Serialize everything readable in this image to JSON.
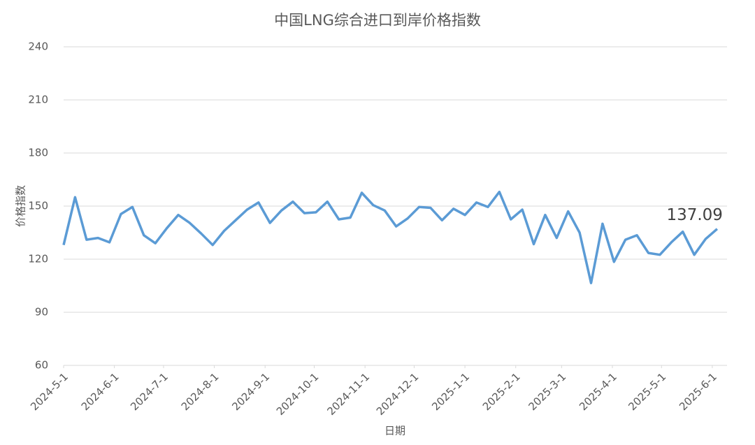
{
  "chart_data": {
    "type": "line",
    "title": "中国LNG综合进口到岸价格指数",
    "x_label": "日期",
    "y_label": "价格指数",
    "x": [
      "2024-5-1",
      "2024-5-8",
      "2024-5-15",
      "2024-5-22",
      "2024-5-29",
      "2024-6-5",
      "2024-6-12",
      "2024-6-19",
      "2024-6-26",
      "2024-7-3",
      "2024-7-10",
      "2024-7-17",
      "2024-7-24",
      "2024-7-31",
      "2024-8-7",
      "2024-8-14",
      "2024-8-21",
      "2024-8-28",
      "2024-9-4",
      "2024-9-11",
      "2024-9-18",
      "2024-9-25",
      "2024-10-2",
      "2024-10-9",
      "2024-10-16",
      "2024-10-23",
      "2024-10-30",
      "2024-11-6",
      "2024-11-13",
      "2024-11-20",
      "2024-11-27",
      "2024-12-4",
      "2024-12-11",
      "2024-12-18",
      "2024-12-25",
      "2025-1-1",
      "2025-1-8",
      "2025-1-15",
      "2025-1-22",
      "2025-1-29",
      "2025-2-5",
      "2025-2-12",
      "2025-2-19",
      "2025-2-26",
      "2025-3-5",
      "2025-3-12",
      "2025-3-19",
      "2025-3-26",
      "2025-4-2",
      "2025-4-9",
      "2025-4-16",
      "2025-4-23",
      "2025-4-30",
      "2025-5-7",
      "2025-5-14",
      "2025-5-21",
      "2025-5-28",
      "2025-6-4"
    ],
    "series": [
      {
        "name": "价格指数",
        "color": "#5b9bd5",
        "values": [
          128,
          155,
          131,
          132,
          129.5,
          145.5,
          149.5,
          133.5,
          129,
          137.5,
          145,
          140.5,
          134.5,
          128,
          136,
          142,
          148,
          152,
          140.5,
          147.5,
          152.5,
          146,
          146.5,
          152.5,
          142.5,
          143.5,
          157.5,
          150.5,
          147.5,
          138.5,
          143,
          149.5,
          149,
          142,
          148.5,
          145,
          152,
          149.5,
          158,
          142.5,
          148,
          128.5,
          145,
          132,
          147,
          135,
          106.5,
          140,
          118.5,
          131,
          133.5,
          123.5,
          122.5,
          129.5,
          135.5,
          122.5,
          131.5,
          137.09
        ]
      }
    ],
    "xlim": [
      "2024-5-1",
      "2025-6-10"
    ],
    "xticks": [
      "2024-5-1",
      "2024-6-1",
      "2024-7-1",
      "2024-8-1",
      "2024-9-1",
      "2024-10-1",
      "2024-11-1",
      "2024-12-1",
      "2025-1-1",
      "2025-2-1",
      "2025-3-1",
      "2025-4-1",
      "2025-5-1",
      "2025-6-1"
    ],
    "ylim": [
      60,
      240
    ],
    "yticks": [
      60,
      90,
      120,
      150,
      180,
      210,
      240
    ],
    "grid": true
  }
}
